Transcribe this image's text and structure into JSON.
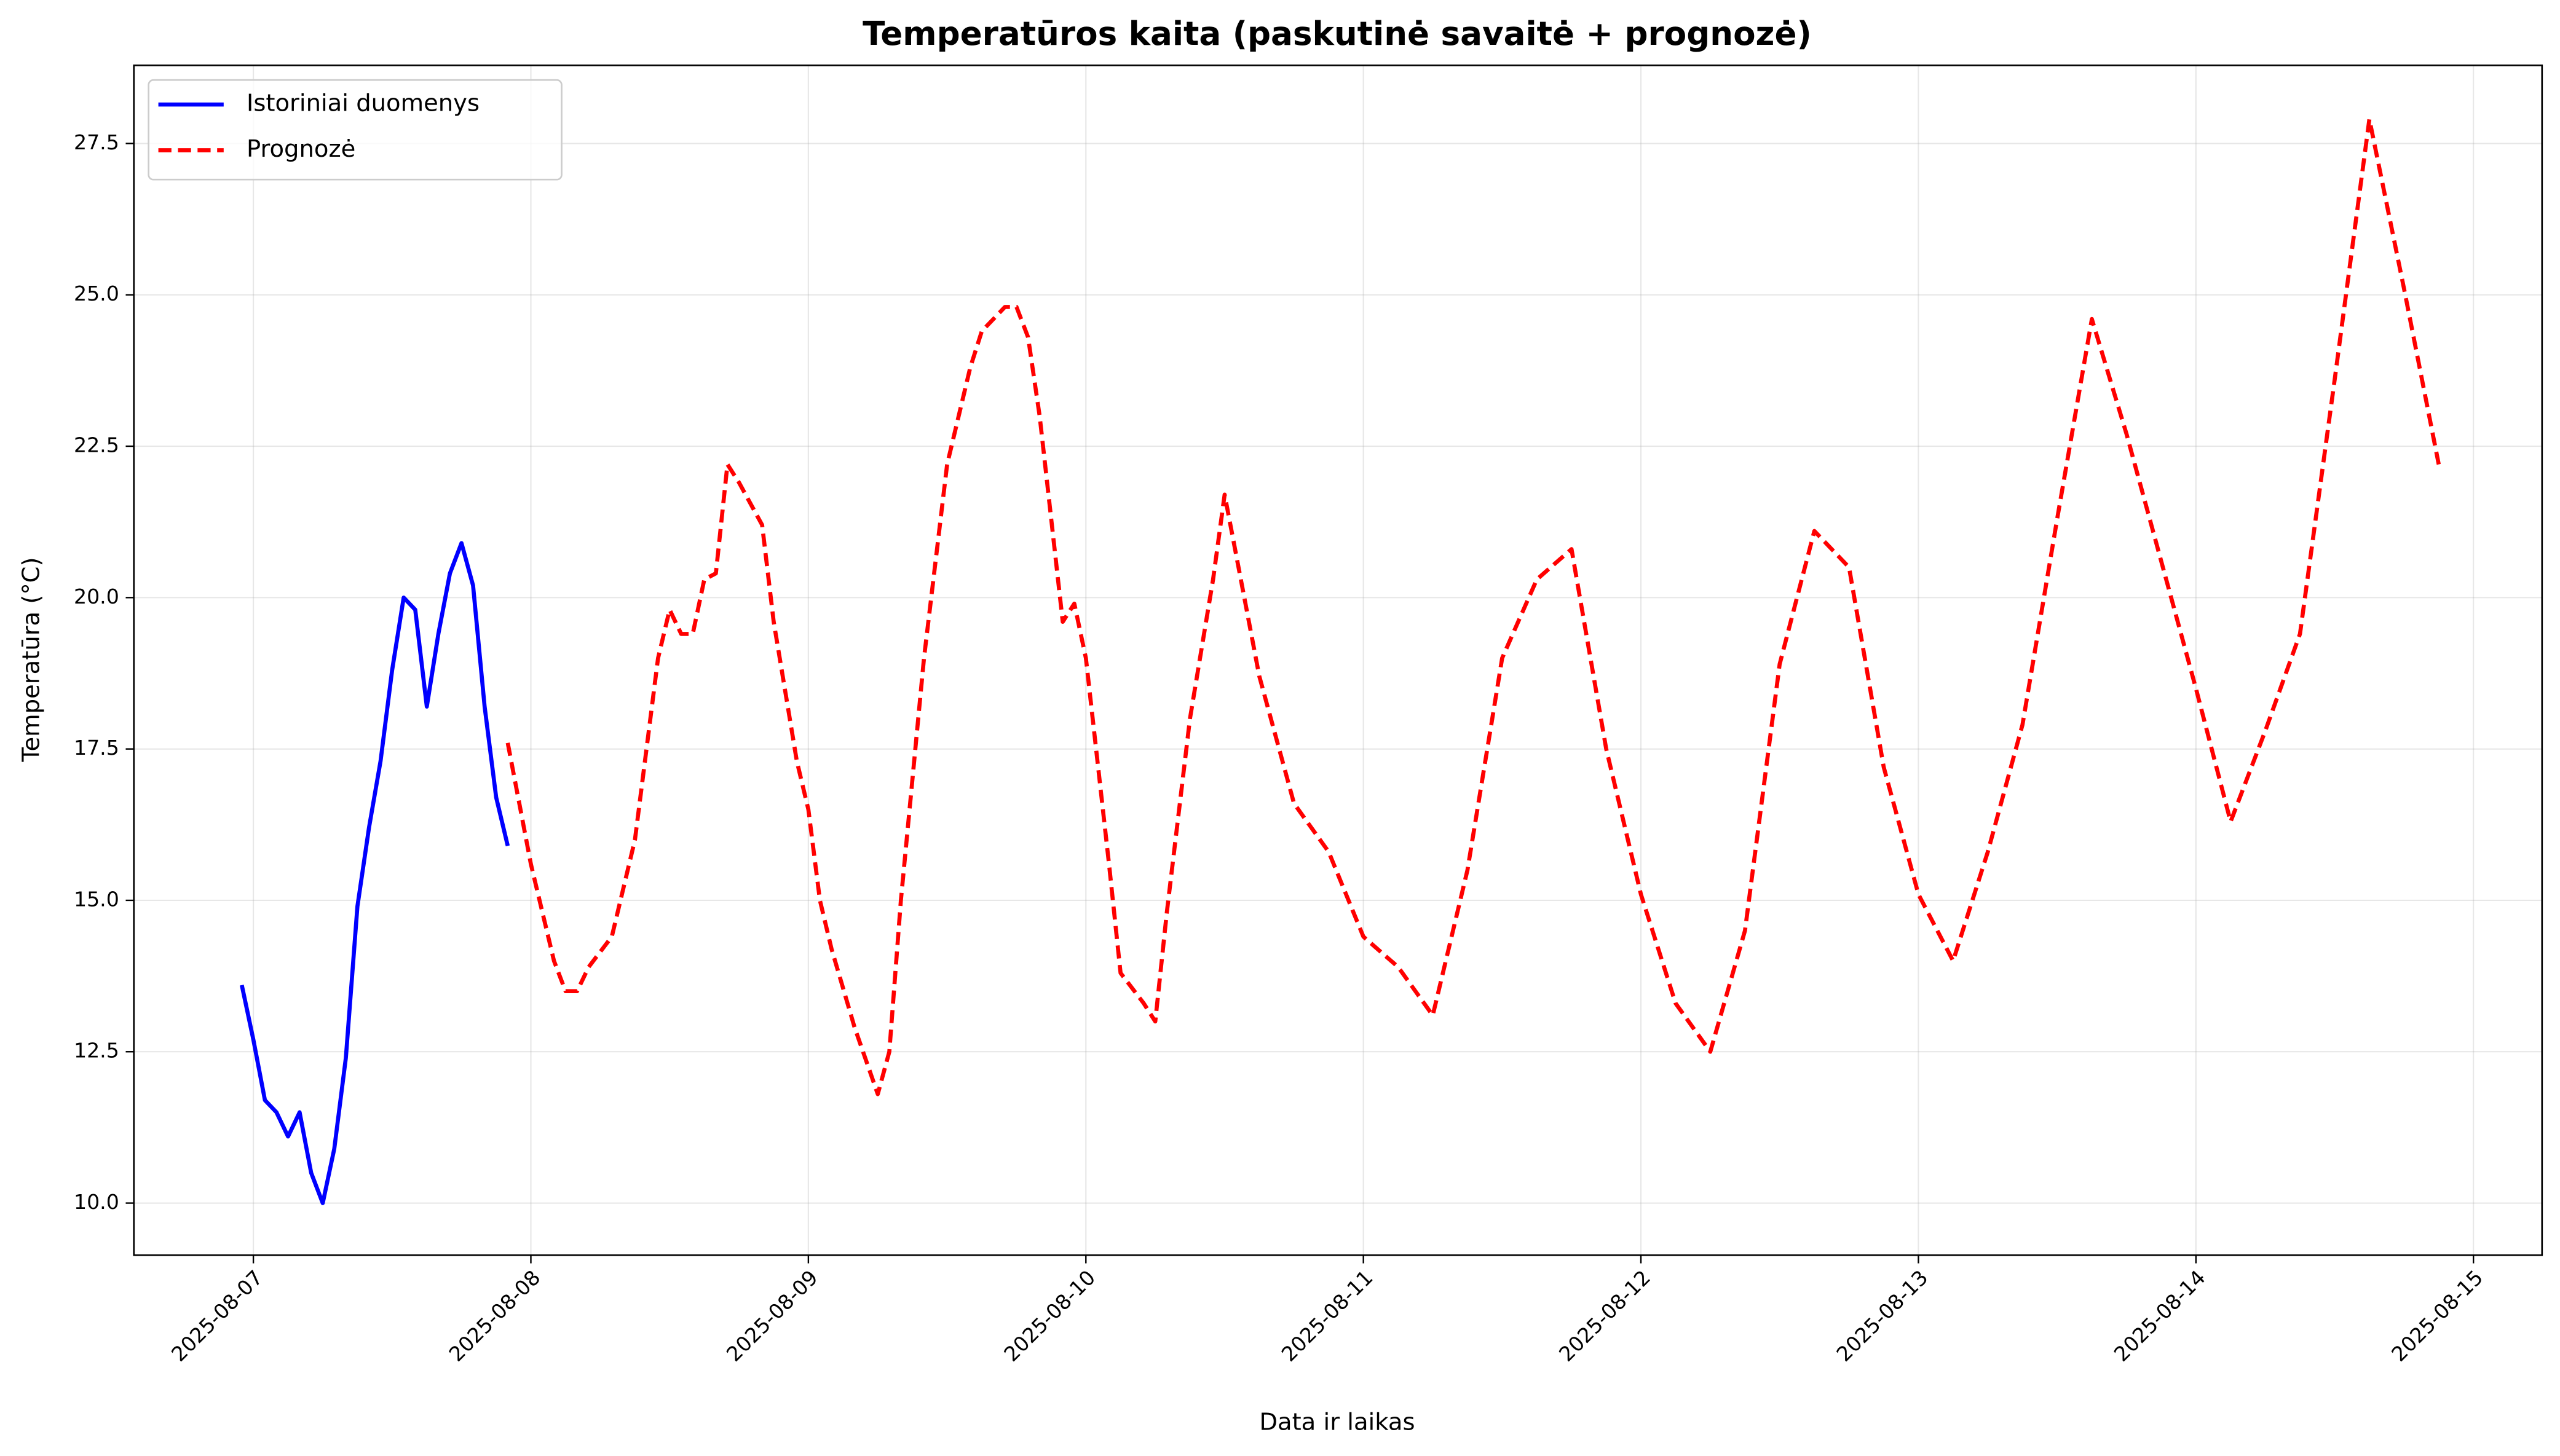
{
  "chart_data": {
    "type": "line",
    "title": "Temperatūros kaita (paskutinė savaitė + prognozė)",
    "x_label": "Data ir laikas",
    "y_label": "Temperatūra (°C)",
    "xlim": [
      "2025-08-06 13:40",
      "2025-08-15 05:56"
    ],
    "xticks": [
      "2025-08-07",
      "2025-08-08",
      "2025-08-09",
      "2025-08-10",
      "2025-08-11",
      "2025-08-12",
      "2025-08-13",
      "2025-08-14",
      "2025-08-15"
    ],
    "ylim": [
      9.14,
      28.79
    ],
    "yticks": [
      {
        "value": 10,
        "label": "10.0"
      },
      12.5,
      {
        "value": 15,
        "label": "15.0"
      },
      17.5,
      {
        "value": 20,
        "label": "20.0"
      },
      22.5,
      {
        "value": 25,
        "label": "25.0"
      },
      27.5
    ],
    "grid": true,
    "legend": "upper left",
    "series": [
      {
        "name": "Istoriniai duomenys",
        "color": "#0000ff",
        "linestyle": "solid",
        "x": [
          "2025-08-06 23:00",
          "2025-08-07 00:00",
          "2025-08-07 01:00",
          "2025-08-07 02:00",
          "2025-08-07 03:00",
          "2025-08-07 04:00",
          "2025-08-07 05:00",
          "2025-08-07 06:00",
          "2025-08-07 07:00",
          "2025-08-07 08:00",
          "2025-08-07 09:00",
          "2025-08-07 10:00",
          "2025-08-07 11:00",
          "2025-08-07 12:00",
          "2025-08-07 13:00",
          "2025-08-07 14:00",
          "2025-08-07 15:00",
          "2025-08-07 16:00",
          "2025-08-07 17:00",
          "2025-08-07 18:00",
          "2025-08-07 19:00",
          "2025-08-07 20:00",
          "2025-08-07 21:00",
          "2025-08-07 22:00"
        ],
        "values": [
          13.6,
          12.7,
          11.7,
          11.5,
          11.1,
          11.5,
          10.5,
          10.0,
          10.9,
          12.4,
          14.9,
          16.2,
          17.3,
          18.8,
          20.0,
          19.8,
          18.2,
          19.4,
          20.4,
          20.9,
          20.2,
          18.2,
          16.7,
          15.9
        ]
      },
      {
        "name": "Prognozė",
        "color": "#ff0000",
        "linestyle": "dashed",
        "x": [
          "2025-08-07 22:00",
          "2025-08-08 00:00",
          "2025-08-08 02:00",
          "2025-08-08 03:00",
          "2025-08-08 04:00",
          "2025-08-08 05:00",
          "2025-08-08 07:00",
          "2025-08-08 09:00",
          "2025-08-08 11:00",
          "2025-08-08 12:00",
          "2025-08-08 13:00",
          "2025-08-08 14:00",
          "2025-08-08 15:00",
          "2025-08-08 16:00",
          "2025-08-08 17:00",
          "2025-08-08 18:00",
          "2025-08-08 20:00",
          "2025-08-08 21:00",
          "2025-08-08 23:00",
          "2025-08-09 00:00",
          "2025-08-09 01:00",
          "2025-08-09 02:00",
          "2025-08-09 04:00",
          "2025-08-09 06:00",
          "2025-08-09 07:00",
          "2025-08-09 08:00",
          "2025-08-09 10:00",
          "2025-08-09 12:00",
          "2025-08-09 14:00",
          "2025-08-09 15:00",
          "2025-08-09 17:00",
          "2025-08-09 18:00",
          "2025-08-09 19:00",
          "2025-08-09 20:00",
          "2025-08-09 22:00",
          "2025-08-09 23:00",
          "2025-08-10 00:00",
          "2025-08-10 02:00",
          "2025-08-10 03:00",
          "2025-08-10 05:00",
          "2025-08-10 06:00",
          "2025-08-10 07:00",
          "2025-08-10 09:00",
          "2025-08-10 11:00",
          "2025-08-10 12:00",
          "2025-08-10 13:00",
          "2025-08-10 15:00",
          "2025-08-10 18:00",
          "2025-08-10 21:00",
          "2025-08-11 00:00",
          "2025-08-11 03:00",
          "2025-08-11 06:00",
          "2025-08-11 09:00",
          "2025-08-11 12:00",
          "2025-08-11 15:00",
          "2025-08-11 18:00",
          "2025-08-11 21:00",
          "2025-08-12 00:00",
          "2025-08-12 03:00",
          "2025-08-12 06:00",
          "2025-08-12 09:00",
          "2025-08-12 12:00",
          "2025-08-12 15:00",
          "2025-08-12 18:00",
          "2025-08-12 21:00",
          "2025-08-13 00:00",
          "2025-08-13 03:00",
          "2025-08-13 06:00",
          "2025-08-13 09:00",
          "2025-08-13 12:00",
          "2025-08-13 15:00",
          "2025-08-13 18:00",
          "2025-08-13 21:00",
          "2025-08-14 00:00",
          "2025-08-14 03:00",
          "2025-08-14 06:00",
          "2025-08-14 09:00",
          "2025-08-14 12:00",
          "2025-08-14 15:00",
          "2025-08-14 18:00",
          "2025-08-14 21:00"
        ],
        "values": [
          17.6,
          15.6,
          14.0,
          13.5,
          13.5,
          13.9,
          14.4,
          16.0,
          19.0,
          19.8,
          19.4,
          19.4,
          20.3,
          20.4,
          22.2,
          21.9,
          21.2,
          19.6,
          17.3,
          16.5,
          15.0,
          14.2,
          12.9,
          11.8,
          12.5,
          15.0,
          19.0,
          22.2,
          23.8,
          24.4,
          24.8,
          24.8,
          24.3,
          23.0,
          19.6,
          19.9,
          19.0,
          15.6,
          13.8,
          13.3,
          13.0,
          14.8,
          18.0,
          20.3,
          21.7,
          20.7,
          18.7,
          16.6,
          15.8,
          14.4,
          13.9,
          13.1,
          15.5,
          19.0,
          20.3,
          20.8,
          17.5,
          15.1,
          13.3,
          12.5,
          14.5,
          18.9,
          21.1,
          20.5,
          17.2,
          15.1,
          14.0,
          15.8,
          17.9,
          21.3,
          24.6,
          22.7,
          20.6,
          18.5,
          16.3,
          17.8,
          19.4,
          23.6,
          27.9,
          25.1,
          22.2
        ]
      }
    ]
  }
}
